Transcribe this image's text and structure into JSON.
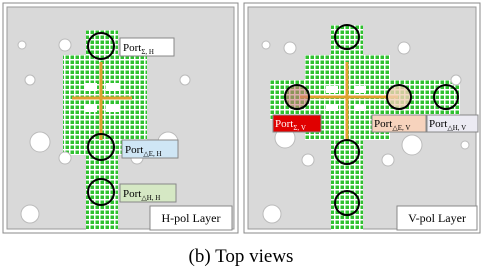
{
  "panels": [
    {
      "ports": [
        {
          "label": "Port",
          "subscript": "Σ, H"
        },
        {
          "label": "Port",
          "subscript": "△E, H"
        },
        {
          "label": "Port",
          "subscript": "△H, H"
        }
      ],
      "layer_label": "H-pol Layer"
    },
    {
      "ports": [
        {
          "label": "Port",
          "subscript": "Σ, V"
        },
        {
          "label": "Port",
          "subscript": "△E, V"
        },
        {
          "label": "Port",
          "subscript": "△H, V"
        }
      ],
      "layer_label": "V-pol Layer"
    }
  ],
  "caption": "(b) Top views"
}
